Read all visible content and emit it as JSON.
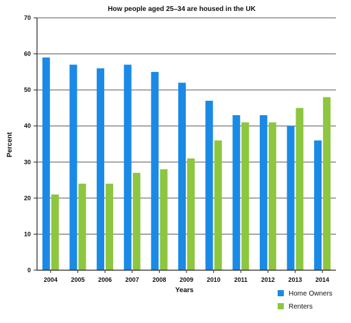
{
  "chart_data": {
    "type": "bar",
    "title": "How people aged 25–34 are housed in the UK",
    "xlabel": "Years",
    "ylabel": "Percent",
    "categories": [
      "2004",
      "2005",
      "2006",
      "2007",
      "2008",
      "2009",
      "2010",
      "2011",
      "2012",
      "2013",
      "2014"
    ],
    "series": [
      {
        "name": "Home Owners",
        "color": "#1a8ae6",
        "values": [
          59,
          57,
          56,
          57,
          55,
          52,
          47,
          43,
          43,
          40,
          36
        ]
      },
      {
        "name": "Renters",
        "color": "#8dc63f",
        "values": [
          21,
          24,
          24,
          27,
          28,
          31,
          36,
          41,
          41,
          45,
          48
        ]
      }
    ],
    "ylim": [
      0,
      70
    ],
    "yticks": [
      "0",
      "10",
      "20",
      "30",
      "40",
      "50",
      "60",
      "70"
    ],
    "grid": true,
    "legend_position": "bottom-right"
  }
}
